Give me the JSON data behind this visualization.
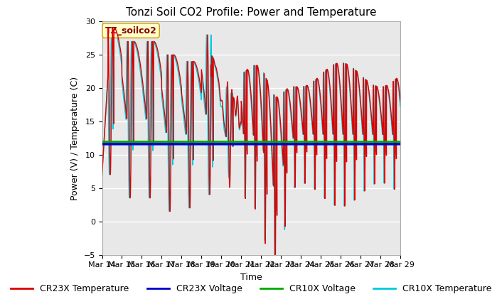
{
  "title": "Tonzi Soil CO2 Profile: Power and Temperature",
  "ylabel": "Power (V) / Temperature (C)",
  "xlabel": "Time",
  "ylim": [
    -5,
    30
  ],
  "yticks": [
    -5,
    0,
    5,
    10,
    15,
    20,
    25,
    30
  ],
  "annotation_text": "TZ_soilco2",
  "cr23x_voltage": 11.6,
  "cr10x_voltage": 11.95,
  "plot_bg_color": "#e8e8e8",
  "grid_color": "white",
  "colors": {
    "CR23X_Temp": "#dd0000",
    "CR23X_Voltage": "#0000cc",
    "CR10X_Voltage": "#00aa00",
    "CR10X_Temp": "#00ccdd"
  },
  "legend_labels": [
    "CR23X Temperature",
    "CR23X Voltage",
    "CR10X Voltage",
    "CR10X Temperature"
  ],
  "x_tick_labels": [
    "Mar 14",
    "Mar 15",
    "Mar 16",
    "Mar 17",
    "Mar 18",
    "Mar 19",
    "Mar 20",
    "Mar 21",
    "Mar 22",
    "Mar 23",
    "Mar 24",
    "Mar 25",
    "Mar 26",
    "Mar 27",
    "Mar 28",
    "Mar 29"
  ],
  "title_fontsize": 11,
  "axis_label_fontsize": 9,
  "tick_fontsize": 8,
  "legend_fontsize": 9
}
